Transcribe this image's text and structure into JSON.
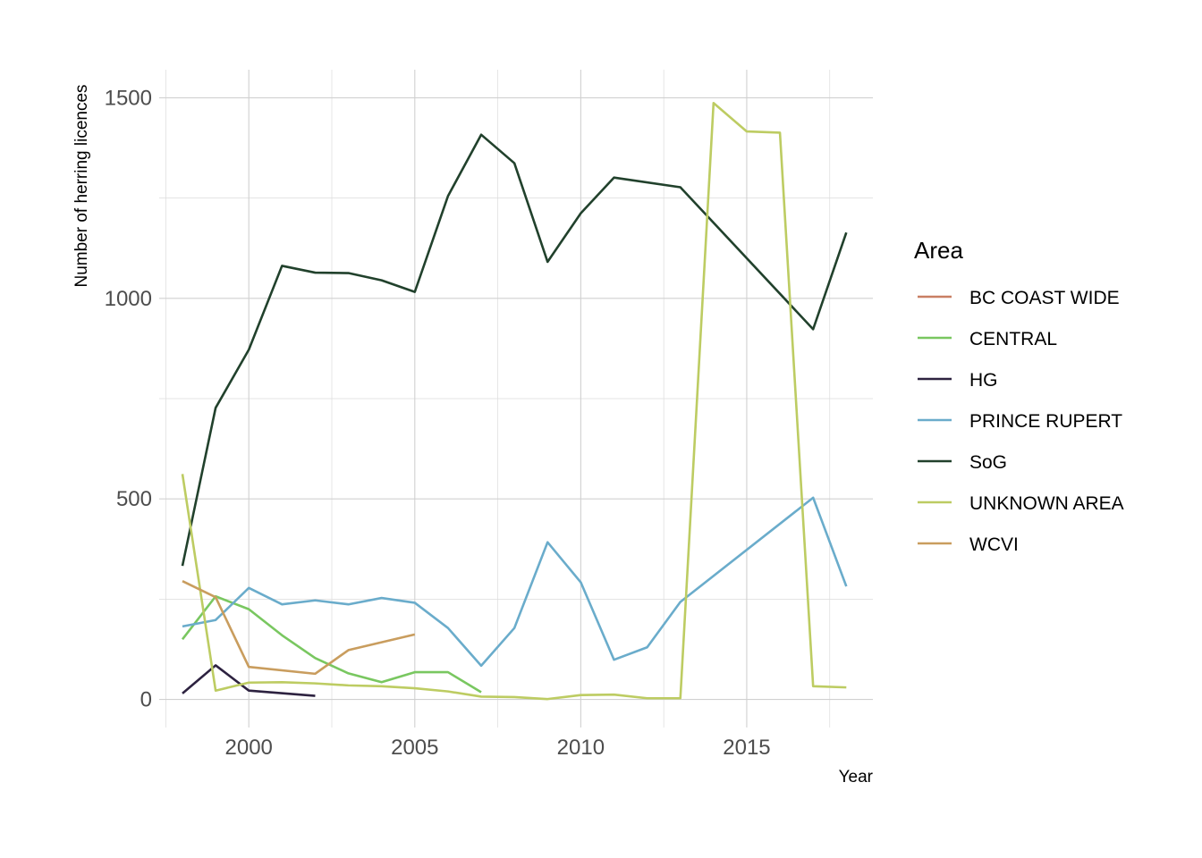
{
  "chart_data": {
    "type": "line",
    "title": "",
    "xlabel": "Year",
    "ylabel": "Number of herring licences",
    "xlim": [
      1997.3,
      2018.8
    ],
    "ylim": [
      -70,
      1570
    ],
    "x_ticks": [
      2000,
      2005,
      2010,
      2015
    ],
    "y_ticks": [
      0,
      500,
      1000,
      1500
    ],
    "grid": true,
    "legend": {
      "title": "Area",
      "position": "right"
    },
    "series": [
      {
        "name": "BC COAST WIDE",
        "color": "#c97f63",
        "points": []
      },
      {
        "name": "CENTRAL",
        "color": "#79c760",
        "points": [
          [
            1998,
            150
          ],
          [
            1999,
            257
          ],
          [
            2000,
            225
          ],
          [
            2001,
            160
          ],
          [
            2002,
            103
          ],
          [
            2003,
            65
          ],
          [
            2004,
            43
          ],
          [
            2005,
            68
          ],
          [
            2006,
            68
          ],
          [
            2007,
            18
          ]
        ]
      },
      {
        "name": "HG",
        "color": "#2d2240",
        "points": [
          [
            1998,
            15
          ],
          [
            1999,
            85
          ],
          [
            2000,
            22
          ],
          [
            2002,
            9
          ]
        ]
      },
      {
        "name": "PRINCE RUPERT",
        "color": "#6aaccb",
        "points": [
          [
            1998,
            182
          ],
          [
            1999,
            198
          ],
          [
            2000,
            278
          ],
          [
            2001,
            237
          ],
          [
            2002,
            247
          ],
          [
            2003,
            237
          ],
          [
            2004,
            253
          ],
          [
            2005,
            241
          ],
          [
            2006,
            178
          ],
          [
            2007,
            84
          ],
          [
            2008,
            178
          ],
          [
            2009,
            392
          ],
          [
            2010,
            292
          ],
          [
            2011,
            99
          ],
          [
            2012,
            130
          ],
          [
            2013,
            243
          ],
          [
            2017,
            503
          ],
          [
            2018,
            282
          ]
        ]
      },
      {
        "name": "SoG",
        "color": "#21412c",
        "points": [
          [
            1998,
            333
          ],
          [
            1999,
            727
          ],
          [
            2000,
            872
          ],
          [
            2001,
            1081
          ],
          [
            2002,
            1064
          ],
          [
            2003,
            1063
          ],
          [
            2004,
            1045
          ],
          [
            2005,
            1016
          ],
          [
            2006,
            1255
          ],
          [
            2007,
            1408
          ],
          [
            2008,
            1337
          ],
          [
            2009,
            1091
          ],
          [
            2010,
            1212
          ],
          [
            2011,
            1301
          ],
          [
            2013,
            1277
          ],
          [
            2017,
            923
          ],
          [
            2018,
            1164
          ]
        ]
      },
      {
        "name": "UNKNOWN AREA",
        "color": "#bdcc62",
        "points": [
          [
            1998,
            562
          ],
          [
            1999,
            22
          ],
          [
            2000,
            42
          ],
          [
            2001,
            43
          ],
          [
            2002,
            40
          ],
          [
            2003,
            35
          ],
          [
            2004,
            33
          ],
          [
            2005,
            28
          ],
          [
            2006,
            20
          ],
          [
            2007,
            7
          ],
          [
            2008,
            6
          ],
          [
            2009,
            1
          ],
          [
            2010,
            11
          ],
          [
            2011,
            12
          ],
          [
            2012,
            3
          ],
          [
            2013,
            3
          ],
          [
            2014,
            1487
          ],
          [
            2015,
            1416
          ],
          [
            2016,
            1413
          ],
          [
            2017,
            33
          ],
          [
            2018,
            30
          ]
        ]
      },
      {
        "name": "WCVI",
        "color": "#c99d5e",
        "points": [
          [
            1998,
            295
          ],
          [
            1999,
            255
          ],
          [
            2000,
            81
          ],
          [
            2002,
            64
          ],
          [
            2003,
            123
          ],
          [
            2005,
            162
          ]
        ]
      }
    ]
  }
}
